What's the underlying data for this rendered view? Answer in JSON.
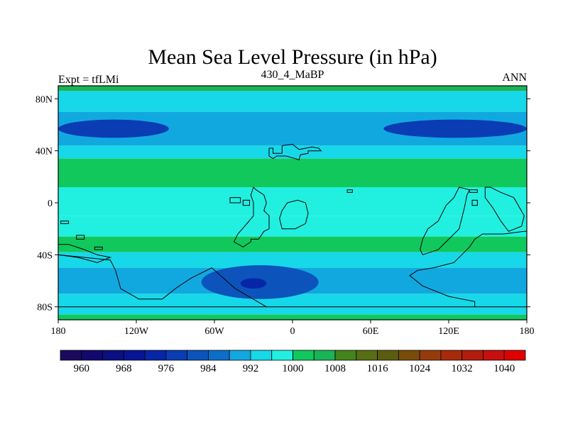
{
  "title": "Mean Sea Level Pressure (in hPa)",
  "left_label": "Expt = tfLMi",
  "center_label": "430_4_MaBP",
  "right_label": "ANN",
  "lat_ticks": [
    "80N",
    "40N",
    "0",
    "40S",
    "80S"
  ],
  "lon_ticks": [
    "180",
    "120W",
    "60W",
    "0",
    "60E",
    "120E",
    "180"
  ],
  "colorbar": {
    "colors": [
      "#1a0a5c",
      "#12086e",
      "#0a0f82",
      "#081496",
      "#0626a8",
      "#0a3cb4",
      "#0c54bc",
      "#0d6ec8",
      "#11a8e0",
      "#17d8e8",
      "#21f0e0",
      "#11c85c",
      "#19b454",
      "#43841c",
      "#566e14",
      "#5a5c10",
      "#7a4c0c",
      "#963c0c",
      "#a82a0c",
      "#b41c0c",
      "#c80e0e",
      "#e00000"
    ],
    "labels": [
      "960",
      "968",
      "976",
      "984",
      "992",
      "1000",
      "1008",
      "1016",
      "1024",
      "1032",
      "1040"
    ]
  },
  "chart_data": {
    "type": "heatmap",
    "title": "Mean Sea Level Pressure (in hPa)",
    "subtitle": "430_4_MaBP",
    "experiment": "Expt = tfLMi",
    "season": "ANN",
    "units": "hPa",
    "x_range": [
      -180,
      180
    ],
    "y_range": [
      -90,
      90
    ],
    "x_ticks": [
      -180,
      -120,
      -60,
      0,
      60,
      120,
      180
    ],
    "y_ticks": [
      80,
      40,
      0,
      -40,
      -80
    ],
    "levels": [
      960,
      964,
      968,
      972,
      976,
      980,
      984,
      988,
      992,
      996,
      1000,
      1004,
      1008,
      1012,
      1016,
      1020,
      1024,
      1028,
      1032,
      1036,
      1040
    ],
    "bands": [
      {
        "lat_min": 86,
        "lat_max": 90,
        "value": 1004
      },
      {
        "lat_min": 70,
        "lat_max": 86,
        "value": 994
      },
      {
        "lat_min": 44,
        "lat_max": 70,
        "value": 988
      },
      {
        "lat_min": 34,
        "lat_max": 44,
        "value": 994
      },
      {
        "lat_min": 12,
        "lat_max": 34,
        "value": 1000
      },
      {
        "lat_min": -10,
        "lat_max": 12,
        "value": 996
      },
      {
        "lat_min": -26,
        "lat_max": -10,
        "value": 999
      },
      {
        "lat_min": -38,
        "lat_max": -26,
        "value": 1000
      },
      {
        "lat_min": -50,
        "lat_max": -38,
        "value": 994
      },
      {
        "lat_min": -70,
        "lat_max": -50,
        "value": 988
      },
      {
        "lat_min": -86,
        "lat_max": -70,
        "value": 994
      },
      {
        "lat_min": -90,
        "lat_max": -86,
        "value": 1002
      }
    ],
    "lows": [
      {
        "lon_min": -180,
        "lon_max": -95,
        "lat_min": 50,
        "lat_max": 64,
        "value": 978
      },
      {
        "lon_min": 70,
        "lon_max": 180,
        "lat_min": 50,
        "lat_max": 64,
        "value": 978
      },
      {
        "lon_min": -70,
        "lon_max": 20,
        "lat_min": -74,
        "lat_max": -48,
        "value": 982
      },
      {
        "lon_min": -40,
        "lon_max": -20,
        "lat_min": -66,
        "lat_max": -58,
        "value": 974
      }
    ],
    "continents": [
      {
        "name": "northern-landmass",
        "lonlat": [
          [
            -15,
            42
          ],
          [
            -15,
            38
          ],
          [
            -8,
            38
          ],
          [
            -8,
            44
          ],
          [
            0,
            45
          ],
          [
            5,
            41
          ],
          [
            15,
            43
          ],
          [
            20,
            42
          ],
          [
            22,
            40
          ],
          [
            12,
            40
          ],
          [
            12,
            38
          ],
          [
            6,
            37
          ],
          [
            5,
            33
          ],
          [
            2,
            34
          ],
          [
            -5,
            36
          ],
          [
            -12,
            36
          ],
          [
            -15,
            34
          ],
          [
            -18,
            36
          ],
          [
            -18,
            42
          ]
        ]
      },
      {
        "name": "central-landmass",
        "lonlat": [
          [
            -32,
            -28
          ],
          [
            -26,
            -28
          ],
          [
            -22,
            -22
          ],
          [
            -18,
            -20
          ],
          [
            -18,
            -10
          ],
          [
            -22,
            -6
          ],
          [
            -20,
            0
          ],
          [
            -22,
            6
          ],
          [
            -28,
            10
          ],
          [
            -30,
            12
          ],
          [
            -32,
            6
          ],
          [
            -30,
            0
          ],
          [
            -30,
            -10
          ],
          [
            -35,
            -16
          ],
          [
            -42,
            -24
          ],
          [
            -45,
            -30
          ],
          [
            -38,
            -34
          ],
          [
            -32,
            -30
          ]
        ]
      },
      {
        "name": "central-east-ring",
        "lonlat": [
          [
            -8,
            -20
          ],
          [
            2,
            -20
          ],
          [
            10,
            -16
          ],
          [
            12,
            -8
          ],
          [
            10,
            0
          ],
          [
            4,
            2
          ],
          [
            -4,
            0
          ],
          [
            -8,
            -6
          ],
          [
            -10,
            -12
          ]
        ]
      },
      {
        "name": "eastern-landmass",
        "lonlat": [
          [
            100,
            -40
          ],
          [
            106,
            -38
          ],
          [
            112,
            -36
          ],
          [
            118,
            -30
          ],
          [
            122,
            -26
          ],
          [
            128,
            -20
          ],
          [
            132,
            -4
          ],
          [
            134,
            6
          ],
          [
            136,
            10
          ],
          [
            128,
            12
          ],
          [
            124,
            4
          ],
          [
            118,
            -2
          ],
          [
            112,
            -14
          ],
          [
            104,
            -20
          ],
          [
            100,
            -28
          ],
          [
            98,
            -36
          ]
        ]
      },
      {
        "name": "far-east-landmass",
        "lonlat": [
          [
            148,
            12
          ],
          [
            152,
            12
          ],
          [
            160,
            8
          ],
          [
            170,
            4
          ],
          [
            178,
            -10
          ],
          [
            176,
            -18
          ],
          [
            166,
            -22
          ],
          [
            160,
            -14
          ],
          [
            154,
            -4
          ],
          [
            148,
            4
          ]
        ]
      },
      {
        "name": "south-polar-landmass",
        "lonlat": [
          [
            -90,
            -66
          ],
          [
            -78,
            -58
          ],
          [
            -62,
            -50
          ],
          [
            -44,
            -66
          ],
          [
            -20,
            -80
          ],
          [
            30,
            -80
          ],
          [
            60,
            -80
          ],
          [
            90,
            -80
          ],
          [
            118,
            -80
          ],
          [
            140,
            -80
          ],
          [
            140,
            -76
          ],
          [
            120,
            -72
          ],
          [
            100,
            -64
          ],
          [
            90,
            -56
          ],
          [
            96,
            -52
          ],
          [
            108,
            -50
          ],
          [
            124,
            -46
          ],
          [
            130,
            -40
          ],
          [
            136,
            -34
          ],
          [
            140,
            -28
          ],
          [
            146,
            -24
          ],
          [
            162,
            -24
          ],
          [
            178,
            -22
          ],
          [
            180,
            -22
          ],
          [
            180,
            -80
          ],
          [
            -180,
            -80
          ],
          [
            -180,
            -40
          ],
          [
            -160,
            -42
          ],
          [
            -140,
            -44
          ],
          [
            -136,
            -52
          ],
          [
            -132,
            -66
          ],
          [
            -118,
            -74
          ],
          [
            -100,
            -74
          ]
        ]
      },
      {
        "name": "western-arc",
        "lonlat": [
          [
            -180,
            -32
          ],
          [
            -172,
            -32
          ],
          [
            -160,
            -36
          ],
          [
            -150,
            -40
          ],
          [
            -140,
            -42
          ],
          [
            -150,
            -46
          ],
          [
            -165,
            -42
          ],
          [
            -180,
            -40
          ]
        ]
      }
    ],
    "islands": [
      {
        "lon_min": -48,
        "lon_max": -40,
        "lat_min": 0,
        "lat_max": 4
      },
      {
        "lon_min": -38,
        "lon_max": -33,
        "lat_min": -2,
        "lat_max": 2
      },
      {
        "lon_min": 42,
        "lon_max": 46,
        "lat_min": 8,
        "lat_max": 10
      },
      {
        "lon_min": -166,
        "lon_max": -160,
        "lat_min": -28,
        "lat_max": -25
      },
      {
        "lon_min": -152,
        "lon_max": -146,
        "lat_min": -36,
        "lat_max": -34
      },
      {
        "lon_min": -178,
        "lon_max": -172,
        "lat_min": -16,
        "lat_max": -14
      },
      {
        "lon_min": 136,
        "lon_max": 142,
        "lat_min": 8,
        "lat_max": 10
      },
      {
        "lon_min": 138,
        "lon_max": 142,
        "lat_min": -2,
        "lat_max": 2
      }
    ]
  }
}
